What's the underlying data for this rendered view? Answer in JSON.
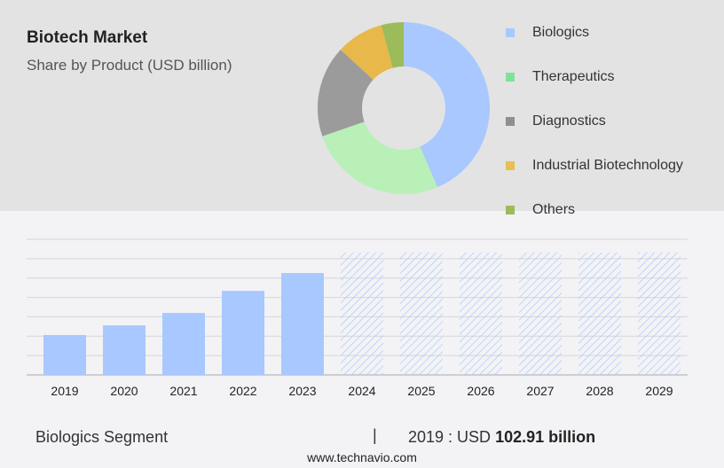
{
  "header": {
    "title": "Biotech Market",
    "subtitle": "Share by Product (USD billion)"
  },
  "chart_data": [
    {
      "type": "pie",
      "donut": true,
      "labels": [
        "Biologics",
        "Therapeutics",
        "Diagnostics",
        "Industrial Biotechnology",
        "Others"
      ],
      "values": [
        43.6,
        26.1,
        17.2,
        8.9,
        4.2
      ],
      "colors": [
        "#a8c8ff",
        "#b8f0b8",
        "#9b9b9b",
        "#e8b84a",
        "#9cbb5a"
      ],
      "legend_colors": [
        "#a8c8ff",
        "#7ee29a",
        "#8f8f8f",
        "#e8c050",
        "#9cbb5a"
      ],
      "legend": "right"
    },
    {
      "type": "bar",
      "categories": [
        "2019",
        "2020",
        "2021",
        "2022",
        "2023",
        "2024",
        "2025",
        "2026",
        "2027",
        "2028",
        "2029"
      ],
      "values": [
        102.91,
        128,
        160,
        217,
        263,
        316,
        316,
        316,
        316,
        316,
        316
      ],
      "forecast_from": "2024",
      "bar_color": "#a8c8ff",
      "ylim": [
        0,
        350
      ],
      "grid": true,
      "yticks_shown": false
    }
  ],
  "footer": {
    "segment": "Biologics Segment",
    "separator": "|",
    "year_label": "2019 : USD",
    "value": "102.91 billion",
    "url": "www.technavio.com"
  }
}
